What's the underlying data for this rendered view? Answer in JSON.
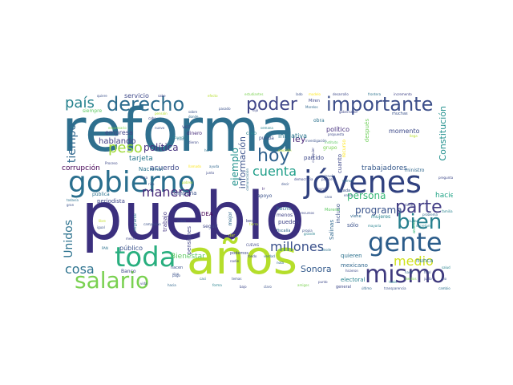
{
  "words": [
    {
      "text": "reforma",
      "color": "#2e6f8e",
      "weight": 1.0
    },
    {
      "text": "pueblo",
      "color": "#3b2f7e",
      "weight": 0.95
    },
    {
      "text": "años",
      "color": "#b5de2b",
      "weight": 0.6
    },
    {
      "text": "gobierno",
      "color": "#2a6f8e",
      "weight": 0.45
    },
    {
      "text": "jóvenes",
      "color": "#30417f",
      "weight": 0.45
    },
    {
      "text": "toda",
      "color": "#29af7f",
      "weight": 0.4
    },
    {
      "text": "gente",
      "color": "#2b5c8a",
      "weight": 0.35
    },
    {
      "text": "mismo",
      "color": "#3f3a7e",
      "weight": 0.35
    },
    {
      "text": "salario",
      "color": "#7ad151",
      "weight": 0.33
    },
    {
      "text": "derecho",
      "color": "#2d6c8e",
      "weight": 0.3
    },
    {
      "text": "importante",
      "color": "#3d4f8a",
      "weight": 0.3
    },
    {
      "text": "poder",
      "color": "#404688",
      "weight": 0.25
    },
    {
      "text": "hoy",
      "color": "#30628e",
      "weight": 0.25
    },
    {
      "text": "parte",
      "color": "#433e85",
      "weight": 0.25
    },
    {
      "text": "bien",
      "color": "#277f8e",
      "weight": 0.25
    },
    {
      "text": "país",
      "color": "#26828e",
      "weight": 0.2
    },
    {
      "text": "peso",
      "color": "#a0da39",
      "weight": 0.2
    },
    {
      "text": "manera",
      "color": "#472878",
      "weight": 0.18
    },
    {
      "text": "cuenta",
      "color": "#1f9e89",
      "weight": 0.18
    },
    {
      "text": "millones",
      "color": "#3b518b",
      "weight": 0.18
    },
    {
      "text": "medio",
      "color": "#d0e11c",
      "weight": 0.18
    },
    {
      "text": "cosa",
      "color": "#2c728e",
      "weight": 0.16
    },
    {
      "text": "Unidos",
      "color": "#2c728e",
      "weight": 0.15
    },
    {
      "text": "tiempo",
      "color": "#31688e",
      "weight": 0.15
    },
    {
      "text": "política",
      "color": "#46327e",
      "weight": 0.13
    },
    {
      "text": "persona",
      "color": "#38b977",
      "weight": 0.13
    },
    {
      "text": "programa",
      "color": "#3a548c",
      "weight": 0.13
    },
    {
      "text": "Sonora",
      "color": "#365c8d",
      "weight": 0.12
    },
    {
      "text": "ejemplo",
      "color": "#21918c",
      "weight": 0.12
    },
    {
      "text": "información",
      "color": "#3b528b",
      "weight": 0.11
    },
    {
      "text": "Constitución",
      "color": "#21908d",
      "weight": 0.11
    },
    {
      "text": "ley",
      "color": "#482576",
      "weight": 0.11
    },
    {
      "text": "hablando",
      "color": "#433e85",
      "weight": 0.1
    },
    {
      "text": "corrupción",
      "color": "#440154",
      "weight": 0.1
    },
    {
      "text": "tarjeta",
      "color": "#2a788e",
      "weight": 0.09
    },
    {
      "text": "acuerdo",
      "color": "#3e4989",
      "weight": 0.09
    },
    {
      "text": "trabajadores",
      "color": "#375a8c",
      "weight": 0.09
    },
    {
      "text": "haciendo",
      "color": "#20a386",
      "weight": 0.08
    },
    {
      "text": "Bienestar",
      "color": "#5ec962",
      "weight": 0.08
    },
    {
      "text": "público",
      "color": "#3b528b",
      "weight": 0.08
    },
    {
      "text": "servicio",
      "color": "#3e4989",
      "weight": 0.08
    },
    {
      "text": "empresa",
      "color": "#414487",
      "weight": 0.08
    },
    {
      "text": "momento",
      "color": "#3e4a89",
      "weight": 0.08
    },
    {
      "text": "político",
      "color": "#46307e",
      "weight": 0.08
    },
    {
      "text": "iniciativa",
      "color": "#2a778e",
      "weight": 0.08
    },
    {
      "text": "electoral",
      "color": "#26828e",
      "weight": 0.07
    },
    {
      "text": "quieren",
      "color": "#2d718e",
      "weight": 0.07
    },
    {
      "text": "mexicano",
      "color": "#31688e",
      "weight": 0.07
    },
    {
      "text": "nunca",
      "color": "#2a788e",
      "weight": 0.07
    },
    {
      "text": "pueden",
      "color": "#404588",
      "weight": 0.07
    },
    {
      "text": "sólo",
      "color": "#3b528b",
      "weight": 0.07
    },
    {
      "text": "DEA",
      "color": "#440154",
      "weight": 0.07
    },
    {
      "text": "campaña",
      "color": "#3b528b",
      "weight": 0.07
    },
    {
      "text": "trabajo",
      "color": "#453882",
      "weight": 0.07
    },
    {
      "text": "periodista",
      "color": "#3f4889",
      "weight": 0.07
    },
    {
      "text": "Nacional",
      "color": "#2c728e",
      "weight": 0.07
    },
    {
      "text": "Salinas",
      "color": "#31688e",
      "weight": 0.07
    },
    {
      "text": "pensiones",
      "color": "#414487",
      "weight": 0.07
    },
    {
      "text": "partido",
      "color": "#3e4989",
      "weight": 0.07
    },
    {
      "text": "después",
      "color": "#6ece58",
      "weight": 0.07
    },
    {
      "text": "cuanto",
      "color": "#3f4889",
      "weight": 0.07
    },
    {
      "text": "incluso",
      "color": "#3b528b",
      "weight": 0.07
    },
    {
      "text": "grupo",
      "color": "#7ad151",
      "weight": 0.06
    },
    {
      "text": "recurso",
      "color": "#fde725",
      "weight": 0.06
    },
    {
      "text": "apoyo",
      "color": "#3b528b",
      "weight": 0.06
    },
    {
      "text": "seguir",
      "color": "#3f4889",
      "weight": 0.06
    },
    {
      "text": "hecho",
      "color": "#2c728e",
      "weight": 0.06
    },
    {
      "text": "menos",
      "color": "#414487",
      "weight": 0.06
    },
    {
      "text": "Banco",
      "color": "#3f4889",
      "weight": 0.06
    },
    {
      "text": "pública",
      "color": "#2c728e",
      "weight": 0.06
    },
    {
      "text": "ministro",
      "color": "#31688e",
      "weight": 0.06
    },
    {
      "text": "mujeres",
      "color": "#26828e",
      "weight": 0.06
    },
    {
      "text": "siempre",
      "color": "#5ec962",
      "weight": 0.06
    },
    {
      "text": "pueda",
      "color": "#3b528b",
      "weight": 0.06
    },
    {
      "text": "obra",
      "color": "#2c728e",
      "weight": 0.06
    },
    {
      "text": "vez",
      "color": "#3e4989",
      "weight": 0.06
    },
    {
      "text": "dinero",
      "color": "#472c7a",
      "weight": 0.06
    },
    {
      "text": "mejor",
      "color": "#31688e",
      "weight": 0.06
    },
    {
      "text": "creo",
      "color": "#26828e",
      "weight": 0.06
    },
    {
      "text": "podemos",
      "color": "#3e4989",
      "weight": 0.05
    },
    {
      "text": "cada",
      "color": "#3b528b",
      "weight": 0.05
    },
    {
      "text": "ir",
      "color": "#472c7a",
      "weight": 0.05
    },
    {
      "text": "viene",
      "color": "#31688e",
      "weight": 0.05
    },
    {
      "text": "asunto",
      "color": "#35b779",
      "weight": 0.05
    },
    {
      "text": "migrante",
      "color": "#2c728e",
      "weight": 0.05
    },
    {
      "text": "Morena",
      "color": "#5ec962",
      "weight": 0.05
    },
    {
      "text": "hacen",
      "color": "#3b528b",
      "weight": 0.05
    },
    {
      "text": "general",
      "color": "#3e4989",
      "weight": 0.05
    },
    {
      "text": "dar",
      "color": "#c2df23",
      "weight": 0.05
    },
    {
      "text": "Miren",
      "color": "#3f4889",
      "weight": 0.05
    },
    {
      "text": "muchas",
      "color": "#3b528b",
      "weight": 0.05
    },
    {
      "text": "beca",
      "color": "#414487",
      "weight": 0.05
    },
    {
      "text": "fiscalía",
      "color": "#31688e",
      "weight": 0.05
    },
    {
      "text": "gran",
      "color": "#3b528b",
      "weight": 0.04
    },
    {
      "text": "CUEVAS",
      "color": "#3f4889",
      "weight": 0.04
    },
    {
      "text": "PAN",
      "color": "#2c728e",
      "weight": 0.04
    },
    {
      "text": "vida",
      "color": "#3e4989",
      "weight": 0.04
    },
    {
      "text": "nuevo",
      "color": "#3b528b",
      "weight": 0.04
    },
    {
      "text": "Morelos",
      "color": "#31688e",
      "weight": 0.04
    },
    {
      "text": "mundo",
      "color": "#414487",
      "weight": 0.04
    },
    {
      "text": "familia",
      "color": "#26828e",
      "weight": 0.04
    },
    {
      "text": "sino",
      "color": "#3b528b",
      "weight": 0.04
    },
    {
      "text": "cabo",
      "color": "#3e4989",
      "weight": 0.04
    },
    {
      "text": "misma",
      "color": "#2c728e",
      "weight": 0.04
    },
    {
      "text": "quiere",
      "color": "#3b528b",
      "weight": 0.04
    },
    {
      "text": "sabe",
      "color": "#3f4889",
      "weight": 0.04
    },
    {
      "text": "efecto",
      "color": "#b5de2b",
      "weight": 0.04
    },
    {
      "text": "estudiantes",
      "color": "#7ad151",
      "weight": 0.04
    },
    {
      "text": "lado",
      "color": "#3b528b",
      "weight": 0.04
    },
    {
      "text": "modelo",
      "color": "#fde725",
      "weight": 0.04
    },
    {
      "text": "desarrollo",
      "color": "#3e4989",
      "weight": 0.04
    },
    {
      "text": "frontera",
      "color": "#2c728e",
      "weight": 0.04
    },
    {
      "text": "incremento",
      "color": "#414487",
      "weight": 0.04
    },
    {
      "text": "pasado",
      "color": "#3b528b",
      "weight": 0.04
    },
    {
      "text": "dijo",
      "color": "#3e4989",
      "weight": 0.04
    },
    {
      "text": "gobernador",
      "color": "#3f4889",
      "weight": 0.04
    },
    {
      "text": "problema",
      "color": "#31688e",
      "weight": 0.04
    },
    {
      "text": "secretario",
      "color": "#26828e",
      "weight": 0.04
    },
    {
      "text": "transparencia",
      "color": "#3b528b",
      "weight": 0.04
    },
    {
      "text": "cambio",
      "color": "#2c728e",
      "weight": 0.04
    },
    {
      "text": "último",
      "color": "#31688e",
      "weight": 0.04
    },
    {
      "text": "hicieron",
      "color": "#3e4989",
      "weight": 0.04
    },
    {
      "text": "través",
      "color": "#3b528b",
      "weight": 0.04
    },
    {
      "text": "semana",
      "color": "#26828e",
      "weight": 0.04
    },
    {
      "text": "propuesta",
      "color": "#3e4989",
      "weight": 0.04
    },
    {
      "text": "investigación",
      "color": "#3b528b",
      "weight": 0.04
    },
    {
      "text": "instituto",
      "color": "#5ec962",
      "weight": 0.04
    },
    {
      "text": "empresario",
      "color": "#7ad151",
      "weight": 0.04
    },
    {
      "text": "pensión",
      "color": "#b5de2b",
      "weight": 0.04
    },
    {
      "text": "Proceso",
      "color": "#3e4989",
      "weight": 0.04
    },
    {
      "text": "todavía",
      "color": "#2c728e",
      "weight": 0.04
    },
    {
      "text": "igual",
      "color": "#3b528b",
      "weight": 0.04
    },
    {
      "text": "meses",
      "color": "#3f4889",
      "weight": 0.04
    },
    {
      "text": "hacia",
      "color": "#31688e",
      "weight": 0.04
    },
    {
      "text": "libre",
      "color": "#c2df23",
      "weight": 0.04
    },
    {
      "text": "Acuerdo",
      "color": "#26828e",
      "weight": 0.04
    },
    {
      "text": "dieron",
      "color": "#3e4989",
      "weight": 0.04
    },
    {
      "text": "pago",
      "color": "#3b528b",
      "weight": 0.04
    },
    {
      "text": "nadie",
      "color": "#414487",
      "weight": 0.04
    },
    {
      "text": "nota",
      "color": "#31688e",
      "weight": 0.04
    },
    {
      "text": "salud",
      "color": "#26828e",
      "weight": 0.04
    },
    {
      "text": "dio",
      "color": "#3b528b",
      "weight": 0.04
    },
    {
      "text": "democracia",
      "color": "#3e4989",
      "weight": 0.04
    },
    {
      "text": "comunicación",
      "color": "#2c728e",
      "weight": 0.04
    },
    {
      "text": "tierra",
      "color": "#b5de2b",
      "weight": 0.04
    },
    {
      "text": "temas",
      "color": "#3b528b",
      "weight": 0.04
    },
    {
      "text": "atención",
      "color": "#7ad151",
      "weight": 0.04
    },
    {
      "text": "fondo",
      "color": "#3e4989",
      "weight": 0.04
    },
    {
      "text": "campesino",
      "color": "#3b528b",
      "weight": 0.04
    },
    {
      "text": "elección",
      "color": "#c2df23",
      "weight": 0.04
    },
    {
      "text": "cualquier",
      "color": "#3f4889",
      "weight": 0.04
    },
    {
      "text": "mayoría",
      "color": "#26828e",
      "weight": 0.04
    },
    {
      "text": "enero",
      "color": "#3b528b",
      "weight": 0.04
    },
    {
      "text": "vamos",
      "color": "#2c728e",
      "weight": 0.04
    },
    {
      "text": "pregunta",
      "color": "#3e4989",
      "weight": 0.04
    },
    {
      "text": "donde",
      "color": "#31688e",
      "weight": 0.04
    },
    {
      "text": "llamado",
      "color": "#fde725",
      "weight": 0.04
    },
    {
      "text": "sobre",
      "color": "#3b528b",
      "weight": 0.04
    },
    {
      "text": "llega",
      "color": "#b5de2b",
      "weight": 0.04
    },
    {
      "text": "tiene",
      "color": "#3e4989",
      "weight": 0.04
    },
    {
      "text": "ciudad",
      "color": "#26828e",
      "weight": 0.04
    },
    {
      "text": "caso",
      "color": "#3b528b",
      "weight": 0.04
    },
    {
      "text": "desde",
      "color": "#2c728e",
      "weight": 0.04
    },
    {
      "text": "parece",
      "color": "#3e4989",
      "weight": 0.04
    },
    {
      "text": "decir",
      "color": "#3b528b",
      "weight": 0.04
    },
    {
      "text": "verdad",
      "color": "#31688e",
      "weight": 0.04
    },
    {
      "text": "amigos",
      "color": "#7ad151",
      "weight": 0.04
    },
    {
      "text": "recursos",
      "color": "#3e4989",
      "weight": 0.04
    },
    {
      "text": "propia",
      "color": "#3b528b",
      "weight": 0.04
    },
    {
      "text": "grande",
      "color": "#26828e",
      "weight": 0.04
    },
    {
      "text": "hora",
      "color": "#2c728e",
      "weight": 0.04
    },
    {
      "text": "casa",
      "color": "#3e4989",
      "weight": 0.04
    },
    {
      "text": "rico",
      "color": "#3b528b",
      "weight": 0.04
    },
    {
      "text": "pobres",
      "color": "#b5de2b",
      "weight": 0.04
    },
    {
      "text": "ayuda",
      "color": "#31688e",
      "weight": 0.04
    },
    {
      "text": "junto",
      "color": "#3e4989",
      "weight": 0.04
    },
    {
      "text": "cerca",
      "color": "#3b528b",
      "weight": 0.04
    },
    {
      "text": "casi",
      "color": "#2c728e",
      "weight": 0.04
    },
    {
      "text": "forma",
      "color": "#26828e",
      "weight": 0.04
    },
    {
      "text": "bajo",
      "color": "#3e4989",
      "weight": 0.04
    },
    {
      "text": "claro",
      "color": "#3b528b",
      "weight": 0.04
    },
    {
      "text": "medios",
      "color": "#7ad151",
      "weight": 0.04
    },
    {
      "text": "justo",
      "color": "#3e4989",
      "weight": 0.04
    },
    {
      "text": "final",
      "color": "#3b528b",
      "weight": 0.04
    },
    {
      "text": "nada",
      "color": "#31688e",
      "weight": 0.04
    },
    {
      "text": "trata",
      "color": "#26828e",
      "weight": 0.04
    },
    {
      "text": "punto",
      "color": "#3e4989",
      "weight": 0.04
    }
  ]
}
